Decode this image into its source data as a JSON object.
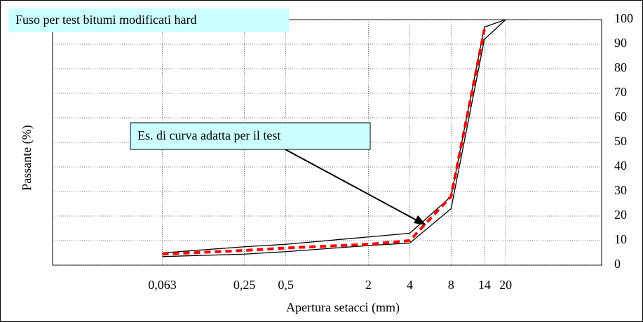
{
  "chart_data": {
    "type": "line",
    "title": "Fuso per test bitumi modificati hard",
    "annotation": "Es. di curva adatta per il test",
    "x_label": "Apertura setacci (mm)",
    "y_label": "Passante (%)",
    "x": [
      0.063,
      0.25,
      0.5,
      2,
      4,
      8,
      14,
      20
    ],
    "series": [
      {
        "color": "#000000",
        "values": [
          5,
          7.5,
          8.5,
          11.5,
          13,
          28,
          97,
          100
        ]
      },
      {
        "color": "#000000",
        "values": [
          3.5,
          4.5,
          5.5,
          8,
          9,
          23,
          92,
          100
        ]
      },
      {
        "color": "#ff0000",
        "dashed": true,
        "values": [
          4.5,
          6,
          7,
          8.5,
          10,
          28,
          96,
          null
        ]
      }
    ],
    "xlog": true,
    "xlim": [
      0.01,
      100
    ],
    "xticks": [
      {
        "value": 0.063,
        "label": "0,063"
      },
      {
        "value": 0.25,
        "label": "0,25"
      },
      {
        "value": 0.5,
        "label": "0,5"
      },
      2,
      4,
      8,
      14,
      20
    ],
    "ylim": [
      0,
      100
    ],
    "yticks": [
      0,
      10,
      20,
      30,
      40,
      50,
      60,
      70,
      80,
      90,
      100
    ],
    "grid": true
  }
}
